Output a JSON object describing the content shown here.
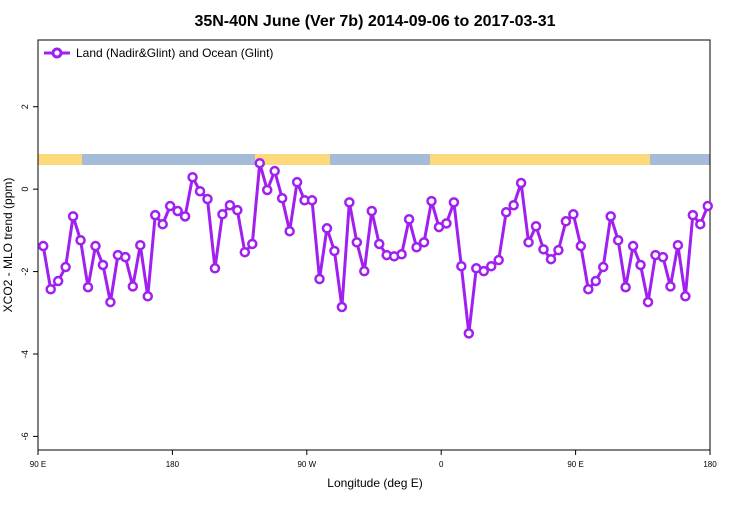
{
  "chart_data": {
    "type": "line",
    "title": "35N-40N June (Ver 7b)   2014-09-06 to 2017-03-31",
    "x_label": "Longitude (deg E)",
    "y_label": "XCO2 - MLO trend (ppm)",
    "x": [
      93.5,
      98.5,
      103.5,
      108.5,
      113.5,
      118.5,
      123.5,
      128.5,
      133.5,
      138.5,
      143.5,
      148.5,
      153.5,
      158.5,
      163.5,
      168.5,
      173.5,
      178.5,
      183.5,
      188.5,
      193.5,
      198.5,
      203.5,
      208.5,
      213.5,
      218.5,
      223.5,
      228.5,
      233.5,
      238.5,
      243.5,
      248.5,
      253.5,
      258.5,
      263.5,
      268.5,
      273.5,
      278.5,
      283.5,
      288.5,
      293.5,
      298.5,
      303.5,
      308.5,
      313.5,
      318.5,
      323.5,
      328.5,
      333.5,
      338.5,
      343.5,
      348.5,
      353.5,
      358.5,
      363.5,
      368.5,
      373.5,
      378.5,
      383.5,
      388.5,
      393.5,
      398.5,
      403.5,
      408.5,
      413.5,
      418.5,
      423.5,
      428.5,
      433.5,
      438.5,
      443.5,
      448.5,
      453.5,
      458.5,
      463.5,
      468.5,
      473.5,
      478.5,
      483.5,
      488.5,
      493.5,
      498.5,
      503.5,
      508.5,
      513.5,
      518.5,
      523.5,
      528.5,
      533.5,
      538.5
    ],
    "series": [
      {
        "name": "Land (Nadir&Glint) and Ocean (Glint)",
        "color": "#a020f0",
        "values": [
          -1.38,
          -2.43,
          -2.23,
          -1.89,
          -0.66,
          -1.24,
          -2.38,
          -1.38,
          -1.84,
          -2.74,
          -1.6,
          -1.65,
          -2.36,
          -1.36,
          -2.6,
          -0.63,
          -0.85,
          -0.41,
          -0.53,
          -0.66,
          0.29,
          -0.05,
          -0.24,
          -1.92,
          -0.61,
          -0.39,
          -0.51,
          -1.53,
          -1.33,
          0.63,
          -0.02,
          0.44,
          -0.22,
          -1.02,
          0.17,
          -0.27,
          -0.27,
          -2.18,
          -0.95,
          -1.5,
          -2.86,
          -0.32,
          -1.29,
          -1.99,
          -0.53,
          -1.33,
          -1.6,
          -1.63,
          -1.58,
          -0.73,
          -1.41,
          -1.29,
          -0.29,
          -0.92,
          -0.83,
          -0.32,
          -1.87,
          -3.5,
          -1.92,
          -1.99,
          -1.87,
          -1.72,
          -0.56,
          -0.39,
          0.15,
          -1.29,
          -0.9,
          -1.46,
          -1.7,
          -1.48,
          -0.78,
          -0.61,
          -1.38,
          -2.43,
          -2.23,
          -1.89,
          -0.66,
          -1.24,
          -2.38,
          -1.38,
          -1.84,
          -2.74,
          -1.6,
          -1.65,
          -2.36,
          -1.36,
          -2.6,
          -0.63,
          -0.85,
          -0.41
        ]
      }
    ],
    "xlim": [
      90,
      540
    ],
    "xticks": [
      {
        "value": 90,
        "label": "90 E"
      },
      {
        "value": 180,
        "label": "180"
      },
      {
        "value": 270,
        "label": "90 W"
      },
      {
        "value": 360,
        "label": "0"
      },
      {
        "value": 450,
        "label": "90 E"
      },
      {
        "value": 540,
        "label": "180"
      }
    ],
    "ylim": [
      -6.33,
      3.62
    ],
    "yticks": [
      -6,
      -4,
      -2,
      0,
      2
    ],
    "legend": "top-left"
  }
}
